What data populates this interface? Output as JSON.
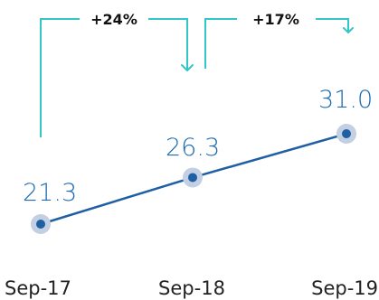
{
  "chart_data": {
    "type": "line",
    "categories": [
      "Sep-17",
      "Sep-18",
      "Sep-19"
    ],
    "values": [
      21.3,
      26.3,
      31.0
    ],
    "value_labels": [
      "21.3",
      "26.3",
      "31.0"
    ],
    "annotations": [
      {
        "from": "Sep-17",
        "to": "Sep-18",
        "label": "+24%"
      },
      {
        "from": "Sep-18",
        "to": "Sep-19",
        "label": "+17%"
      }
    ],
    "title": "",
    "xlabel": "",
    "ylabel": "",
    "grid": false,
    "legend": "none"
  },
  "colors": {
    "line": "#1f5fa3",
    "marker_halo": "#c3cfe2",
    "value_text": "#1f6cb0",
    "bracket": "#33c6c6",
    "tick_text": "#222222"
  }
}
